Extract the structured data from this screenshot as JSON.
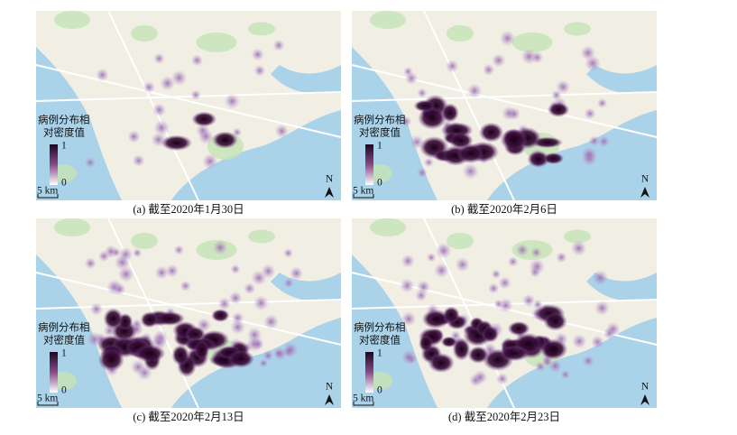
{
  "panels": [
    {
      "caption": "(a) 截至2020年1月30日",
      "legend_title": [
        "病例分布相",
        "对密度值"
      ],
      "legend_max": "1",
      "legend_min": "0",
      "scale": "5 km",
      "north": "N"
    },
    {
      "caption": "(b) 截至2020年2月6日",
      "legend_title": [
        "病例分布相",
        "对密度值"
      ],
      "legend_max": "1",
      "legend_min": "0",
      "scale": "5 km",
      "north": "N"
    },
    {
      "caption": "(c) 截至2020年2月13日",
      "legend_title": [
        "病例分布相",
        "对密度值"
      ],
      "legend_max": "1",
      "legend_min": "0",
      "scale": "5 km",
      "north": "N"
    },
    {
      "caption": "(d) 截至2020年2月23日",
      "legend_title": [
        "病例分布相",
        "对密度值"
      ],
      "legend_max": "1",
      "legend_min": "0",
      "scale": "5 km",
      "north": "N"
    }
  ]
}
